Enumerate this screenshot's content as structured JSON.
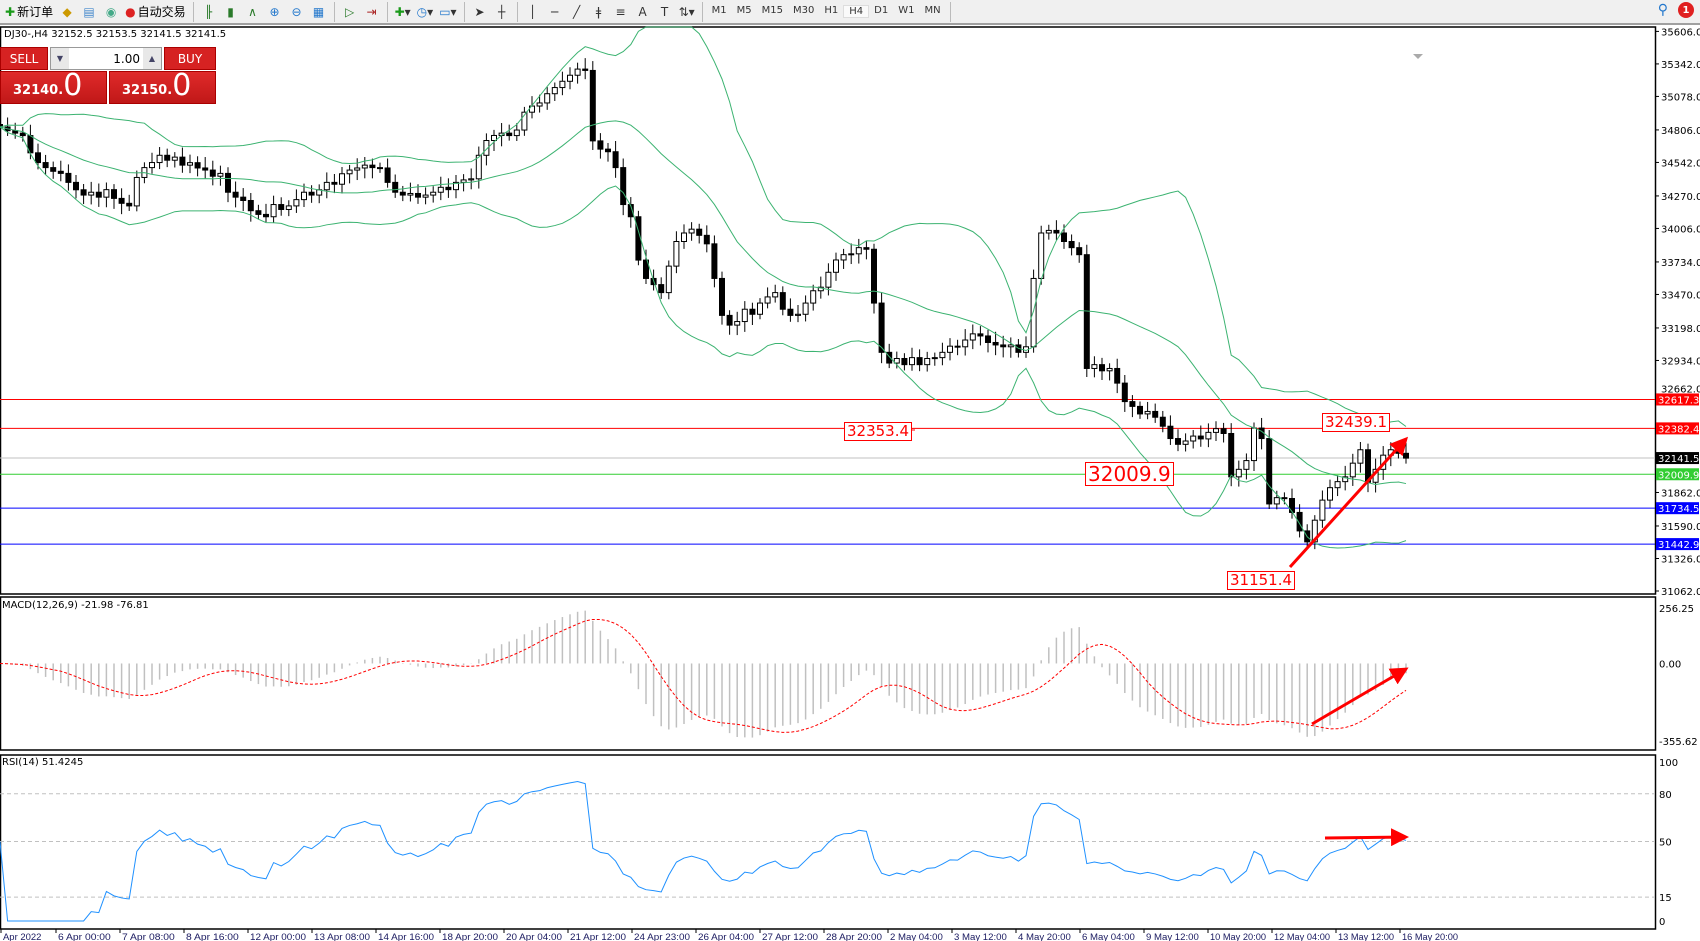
{
  "toolbar": {
    "items": [
      {
        "icon": "new-order-icon",
        "label": "新订单"
      },
      {
        "icon": "market-watch-icon",
        "label": ""
      },
      {
        "icon": "navigator-icon",
        "label": ""
      },
      {
        "icon": "signal-icon",
        "label": ""
      },
      {
        "icon": "auto-trading-icon",
        "label": "自动交易"
      }
    ],
    "chart_tools": [
      "bar-chart-icon",
      "candlestick-icon",
      "line-chart-icon",
      "zoom-in-icon",
      "zoom-out-icon",
      "tile-windows-icon",
      "auto-scroll-icon",
      "chart-shift-icon",
      "indicators-icon",
      "periods-icon",
      "templates-icon",
      "cursor-icon",
      "crosshair-icon",
      "vertical-line-icon",
      "horizontal-line-icon",
      "trendline-icon",
      "fibonacci-icon",
      "fibo-fan-icon",
      "text-icon",
      "text-label-icon",
      "arrows-icon"
    ],
    "timeframes": [
      "M1",
      "M5",
      "M15",
      "M30",
      "H1",
      "H4",
      "D1",
      "W1",
      "MN"
    ],
    "active_timeframe": "H4",
    "notification_count": "1"
  },
  "chart_title": "DJ30-,H4  32152.5 32153.5 32141.5 32141.5",
  "trade_panel": {
    "sell_label": "SELL",
    "buy_label": "BUY",
    "lot": "1.00",
    "sell_price_main": "32140",
    "sell_price_point": ".",
    "sell_price_big": "0",
    "buy_price_main": "32150",
    "buy_price_point": ".",
    "buy_price_big": "0"
  },
  "price_axis": {
    "ticks": [
      "35606.0",
      "35342.0",
      "35078.0",
      "34806.0",
      "34542.0",
      "34270.0",
      "34006.0",
      "33734.0",
      "33470.0",
      "33198.0",
      "32934.0",
      "32662.0",
      "31862.0",
      "31590.0",
      "31326.0",
      "31062.0"
    ],
    "range": [
      31062,
      35606
    ]
  },
  "horizontal_lines": [
    {
      "price": "32617.3",
      "color": "#ff0000"
    },
    {
      "price": "32382.4",
      "color": "#ff0000"
    },
    {
      "price": "32141.5",
      "color": "#000000",
      "line": "#c0c0c0"
    },
    {
      "price": "32009.9",
      "color": "#32cd32"
    },
    {
      "price": "31734.5",
      "color": "#0000ff"
    },
    {
      "price": "31442.9",
      "color": "#0000ff"
    }
  ],
  "annotations": [
    {
      "text": "32353.4"
    },
    {
      "text": "32009.9"
    },
    {
      "text": "32439.1"
    },
    {
      "text": "31151.4"
    }
  ],
  "time_axis": [
    "Apr 2022",
    "6 Apr 00:00",
    "7 Apr 08:00",
    "8 Apr 16:00",
    "12 Apr 00:00",
    "13 Apr 08:00",
    "14 Apr 16:00",
    "18 Apr 20:00",
    "20 Apr 04:00",
    "21 Apr 12:00",
    "24 Apr 23:00",
    "26 Apr 04:00",
    "27 Apr 12:00",
    "28 Apr 20:00",
    "2 May 04:00",
    "3 May 12:00",
    "4 May 20:00",
    "6 May 04:00",
    "9 May 12:00",
    "10 May 20:00",
    "12 May 04:00",
    "13 May 12:00",
    "16 May 20:00"
  ],
  "macd": {
    "label": "MACD(12,26,9) -21.98 -76.81",
    "ticks": [
      "256.25",
      "0.00",
      "-355.62"
    ],
    "range": [
      -355.62,
      256.25
    ]
  },
  "rsi": {
    "label": "RSI(14) 51.4245",
    "ticks": [
      "100",
      "80",
      "50",
      "15",
      "0"
    ],
    "levels": [
      80,
      50,
      15
    ]
  },
  "colors": {
    "bollinger": "#3cb371",
    "macd_hist": "#c0c0c0",
    "macd_signal": "#ff0000",
    "rsi": "#1e90ff",
    "annotation": "#ff0000"
  },
  "chart_data": {
    "type": "candlestick",
    "symbol": "DJ30-",
    "timeframe": "H4",
    "closes": [
      34830,
      34800,
      34780,
      34760,
      34620,
      34541,
      34500,
      34470,
      34453,
      34380,
      34320,
      34277,
      34300,
      34260,
      34321,
      34250,
      34210,
      34189,
      34420,
      34500,
      34541,
      34600,
      34560,
      34585,
      34520,
      34540,
      34497,
      34480,
      34430,
      34453,
      34300,
      34260,
      34233,
      34150,
      34120,
      34101,
      34200,
      34160,
      34189,
      34240,
      34300,
      34277,
      34320,
      34380,
      34365,
      34450,
      34480,
      34497,
      34520,
      34500,
      34497,
      34380,
      34300,
      34277,
      34290,
      34260,
      34277,
      34300,
      34340,
      34321,
      34380,
      34400,
      34409,
      34600,
      34720,
      34761,
      34780,
      34760,
      34805,
      34950,
      35000,
      35025,
      35100,
      35150,
      35201,
      35250,
      35300,
      35289,
      34717,
      34650,
      34629,
      34500,
      34200,
      34101,
      33749,
      33600,
      33550,
      33485,
      33700,
      33900,
      33969,
      34000,
      33950,
      33881,
      33600,
      33300,
      33221,
      33250,
      33350,
      33309,
      33400,
      33450,
      33485,
      33350,
      33300,
      33309,
      33400,
      33500,
      33529,
      33650,
      33750,
      33793,
      33800,
      33850,
      33837,
      33400,
      33000,
      32913,
      32950,
      32900,
      32957,
      32900,
      32950,
      32957,
      33000,
      33050,
      33045,
      33100,
      33150,
      33133,
      33080,
      33060,
      33045,
      33060,
      33000,
      33045,
      33600,
      33969,
      33990,
      33969,
      33900,
      33850,
      33793,
      32869,
      32900,
      32850,
      32869,
      32750,
      32600,
      32561,
      32500,
      32520,
      32473,
      32400,
      32300,
      32253,
      32280,
      32320,
      32297,
      32350,
      32380,
      32341,
      31989,
      32050,
      32121,
      32385,
      32300,
      31769,
      31820,
      31813,
      31700,
      31550,
      31461,
      31637,
      31800,
      31901,
      31950,
      31989,
      32100,
      32209,
      31945,
      32050,
      32165,
      32209,
      32180,
      32141
    ],
    "indicators": [
      "Bollinger Bands(20,2)",
      "MACD(12,26,9)",
      "RSI(14)"
    ]
  }
}
